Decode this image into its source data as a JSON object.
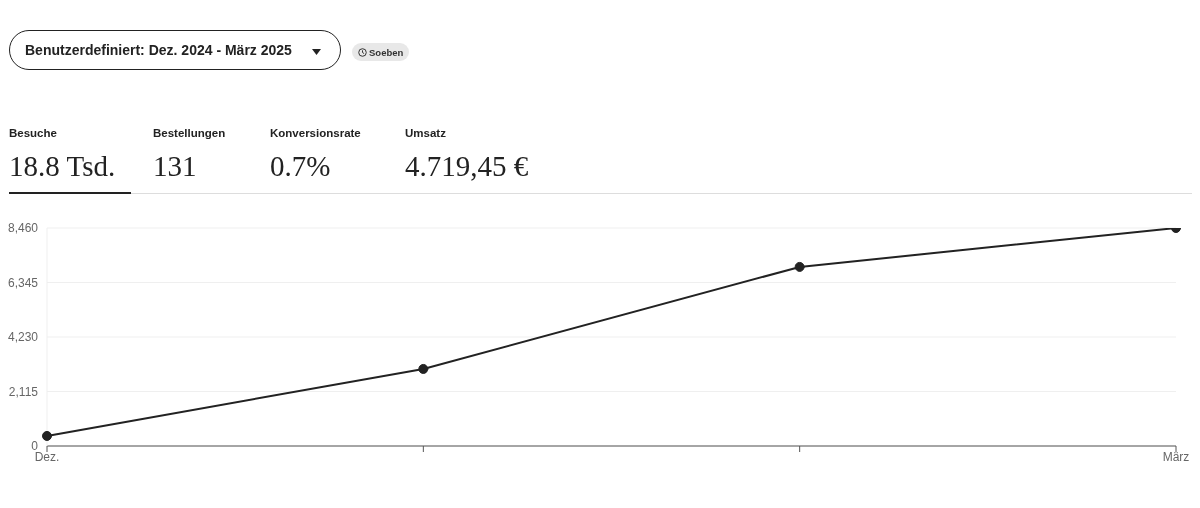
{
  "chart_data": {
    "type": "line",
    "subtitle": "Benutzerdefiniert: Dez. 2024 - März 2025",
    "annotations": [
      "Soeben",
      "Besuche",
      "18.8 Tsd.",
      "Bestellungen",
      "131",
      "Konversionsrate",
      "0.7%",
      "Umsatz",
      "4.719,45 €"
    ],
    "categories": [
      "Dez.",
      null,
      null,
      "März"
    ],
    "series": [
      {
        "color": "#222222",
        "values": [
          390,
          2990,
          6950,
          8460
        ]
      }
    ],
    "ylim": [
      0,
      8460
    ],
    "yticks": [
      0,
      {
        "value": 2115,
        "label": "2,115"
      },
      {
        "value": 4230,
        "label": "4,230"
      },
      {
        "value": 6345,
        "label": "6,345"
      },
      {
        "value": 8460,
        "label": "8,460"
      }
    ],
    "grid": "y",
    "marker": "circle",
    "line_style": "solid"
  }
}
